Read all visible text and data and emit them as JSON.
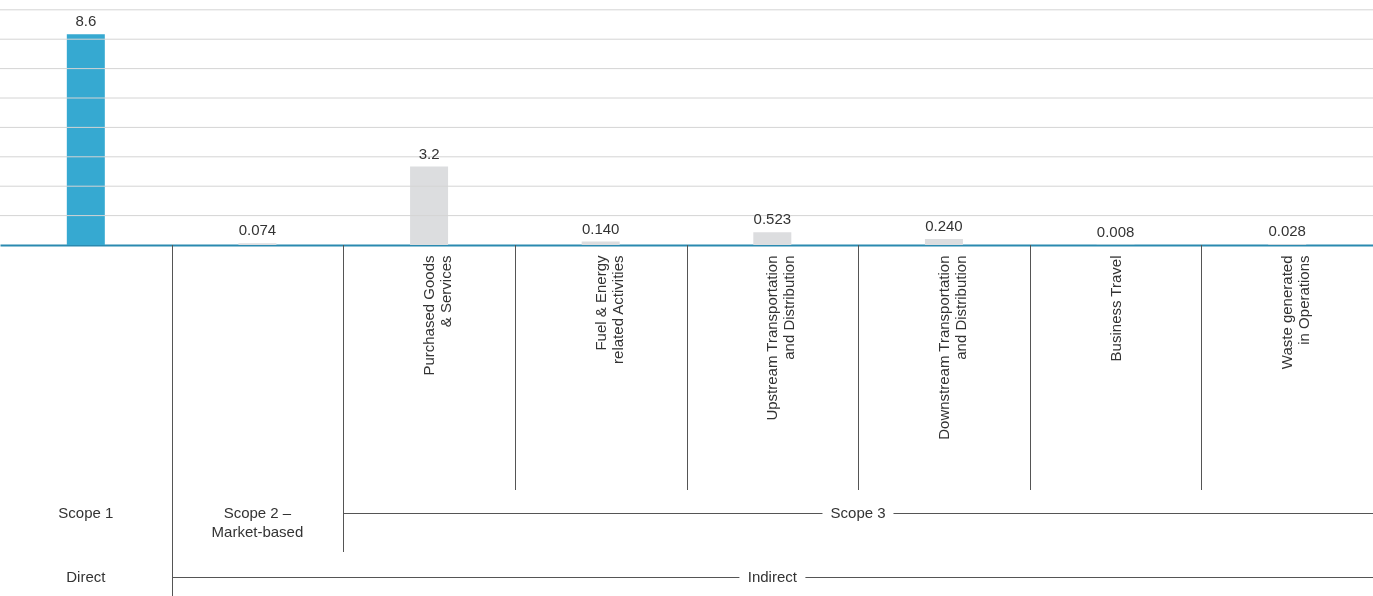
{
  "chart_data": {
    "type": "bar",
    "categories": [
      null,
      null,
      "Purchased Goods & Services",
      "Fuel & Energy related Activities",
      "Upstream Transportation and Distribution",
      "Downstream Transportation and Distribution",
      "Business Travel",
      "Waste generated in Operations"
    ],
    "values": [
      8.6,
      0.074,
      3.2,
      0.14,
      0.523,
      0.24,
      0.008,
      0.028
    ],
    "value_labels": [
      "8.6",
      "0.074",
      "3.2",
      "0.140",
      "0.523",
      "0.240",
      "0.008",
      "0.028"
    ],
    "colors": [
      "#36a9d1",
      "#dcdddf",
      "#dcdddf",
      "#dcdddf",
      "#dcdddf",
      "#dcdddf",
      "#dcdddf",
      "#dcdddf"
    ],
    "ylim": [
      0,
      10
    ],
    "yticks": [
      {
        "value": 1.2,
        "label": null
      },
      {
        "value": 2.4,
        "label": null
      },
      {
        "value": 3.6,
        "label": null
      },
      {
        "value": 4.8,
        "label": null
      },
      {
        "value": 6,
        "label": null
      },
      {
        "value": 7.2,
        "label": null
      },
      {
        "value": 8.4,
        "label": null
      },
      {
        "value": 9.6,
        "label": null
      }
    ],
    "grid": "y",
    "tick_labels": "x",
    "annotations": [
      "Scope 1",
      "Scope 2 – Market-based",
      "Scope 3",
      "Direct",
      "Indirect"
    ]
  }
}
